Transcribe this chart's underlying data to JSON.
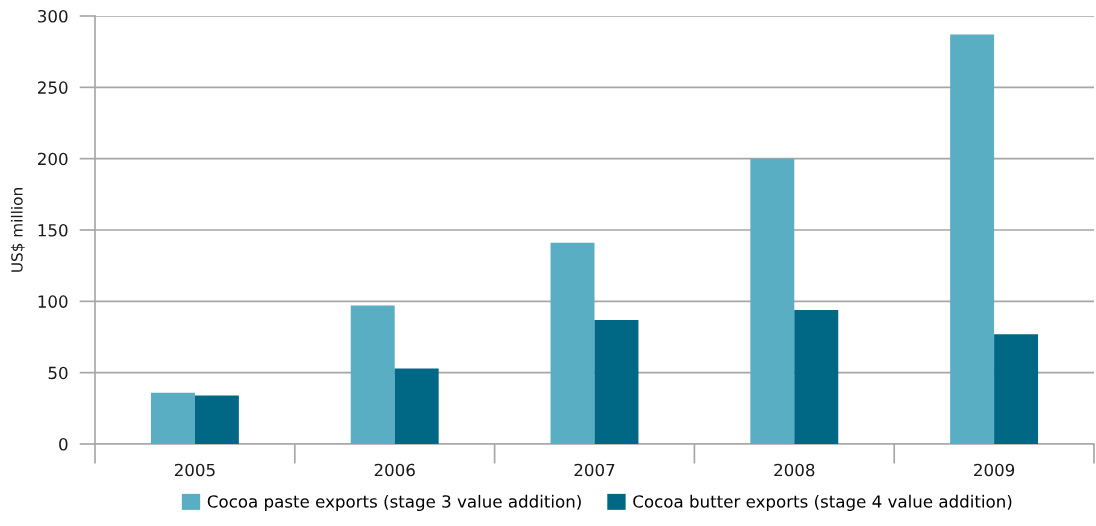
{
  "chart_data": {
    "type": "bar",
    "ylabel": "US$ million",
    "categories": [
      "2005",
      "2006",
      "2007",
      "2008",
      "2009"
    ],
    "series": [
      {
        "name": "Cocoa paste exports (stage 3 value addition)",
        "color": "#59aec3",
        "values": [
          36,
          97,
          141,
          200,
          287
        ]
      },
      {
        "name": "Cocoa butter exports (stage 4 value addition)",
        "color": "#006884",
        "values": [
          34,
          53,
          87,
          94,
          77
        ]
      }
    ],
    "ylim": [
      0,
      300
    ],
    "yticks": [
      0,
      50,
      100,
      150,
      200,
      250,
      300
    ],
    "grid": "y",
    "legend": "bottom"
  }
}
